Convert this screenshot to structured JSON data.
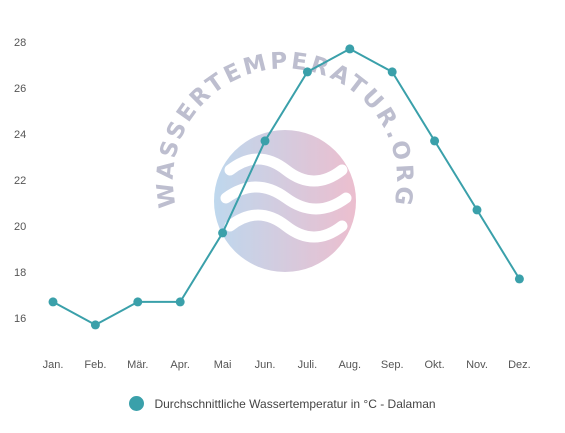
{
  "colors": {
    "series": "#3aa0aa",
    "tick_text": "#555555"
  },
  "watermark": {
    "text": "WASSERTEMPERATUR.ORG",
    "icon": "waves-logo-icon"
  },
  "chart_data": {
    "type": "line",
    "categories": [
      "Jan.",
      "Feb.",
      "Mär.",
      "Apr.",
      "Mai",
      "Jun.",
      "Juli.",
      "Aug.",
      "Sep.",
      "Okt.",
      "Nov.",
      "Dez."
    ],
    "series": [
      {
        "name": "Durchschnittliche Wassertemperatur in °C - Dalaman",
        "values": [
          16.7,
          15.7,
          16.7,
          16.7,
          19.7,
          23.7,
          26.7,
          27.7,
          26.7,
          23.7,
          20.7,
          17.7
        ]
      }
    ],
    "y_ticks": [
      16,
      18,
      20,
      22,
      24,
      26,
      28
    ],
    "ylim": [
      15,
      28.5
    ],
    "grid": false,
    "legend_position": "bottom-center"
  }
}
